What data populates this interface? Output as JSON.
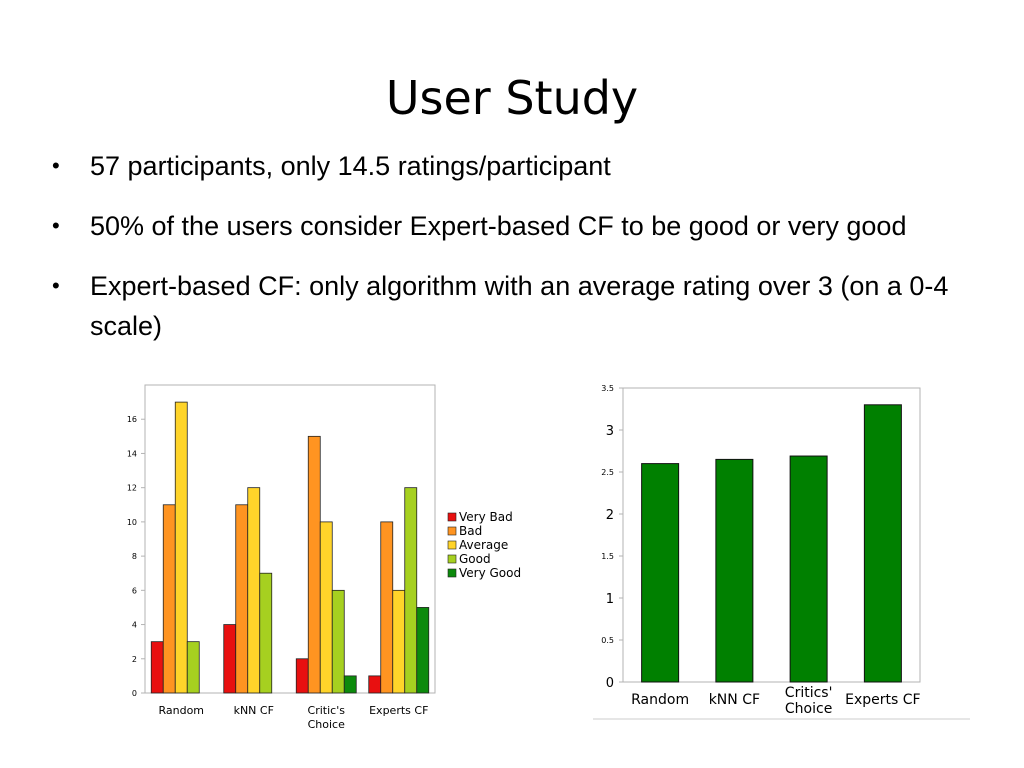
{
  "slide": {
    "title": "User Study",
    "bullets": [
      "57 participants, only 14.5 ratings/participant",
      "50% of the users consider Expert-based CF to be good or very good",
      "Expert-based CF: only algorithm with an average rating over 3 (on a 0-4 scale)"
    ]
  },
  "chart_data": [
    {
      "type": "bar",
      "categories": [
        "Random",
        "kNN CF",
        "Critic's Choice",
        "Experts CF"
      ],
      "series": [
        {
          "name": "Very Bad",
          "color": "#e81010",
          "values": [
            3,
            4,
            2,
            1
          ]
        },
        {
          "name": "Bad",
          "color": "#ff9421",
          "values": [
            11,
            11,
            15,
            10
          ]
        },
        {
          "name": "Average",
          "color": "#ffd42a",
          "values": [
            17,
            12,
            10,
            6
          ]
        },
        {
          "name": "Good",
          "color": "#a6d020",
          "values": [
            3,
            7,
            6,
            12
          ]
        },
        {
          "name": "Very Good",
          "color": "#0c8a0c",
          "values": [
            0,
            0,
            1,
            5
          ]
        }
      ],
      "ylim": [
        0,
        18
      ],
      "yticks": [
        0,
        2,
        4,
        6,
        8,
        10,
        12,
        14,
        16
      ],
      "grid": false,
      "legend": "right"
    },
    {
      "type": "bar",
      "categories": [
        "Random",
        "kNN CF",
        "Critics' Choice",
        "Experts CF"
      ],
      "values": [
        2.6,
        2.65,
        2.69,
        3.3
      ],
      "color": "#008000",
      "ylim": [
        0,
        3.5
      ],
      "yticks": [
        "0",
        "0.5",
        "1",
        "1.5",
        "2",
        "2.5",
        "3",
        "3.5"
      ],
      "grid": false,
      "legend": "none"
    }
  ]
}
